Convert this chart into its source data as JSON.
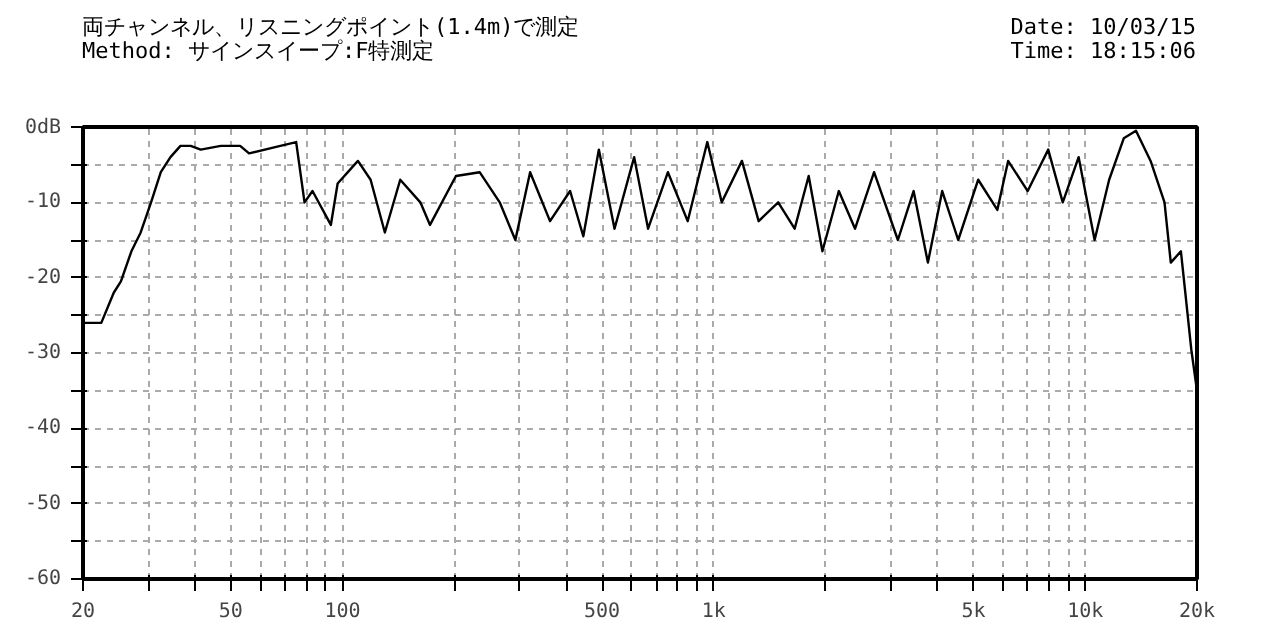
{
  "chart_data": {
    "type": "line",
    "subtitle": "両チャンネル、リスニングポイント(1.4m)で測定",
    "annotations": [
      "Method: サインスイープ:F特測定",
      "Date: 10/03/15",
      "Time: 18:15:06"
    ],
    "x": [
      20,
      22.4,
      24.2,
      25.3,
      27,
      28.6,
      30.5,
      32.4,
      34.4,
      36.6,
      39,
      41.5,
      47,
      53,
      56,
      68,
      75,
      79,
      83,
      93,
      97,
      110,
      119,
      130,
      143,
      162,
      172,
      202,
      234,
      265,
      292,
      320,
      362,
      410,
      445,
      490,
      540,
      610,
      665,
      752,
      850,
      960,
      1050,
      1190,
      1320,
      1490,
      1650,
      1800,
      1960,
      2170,
      2400,
      2700,
      3130,
      3450,
      3770,
      4120,
      4550,
      5150,
      5800,
      6200,
      7000,
      7950,
      8700,
      9600,
      10600,
      11600,
      12700,
      13700,
      15000,
      16350,
      17000,
      18100,
      18600,
      19300,
      20000
    ],
    "series": [
      {
        "color": "#000000",
        "values": [
          -26,
          -26,
          -22,
          -20.5,
          -16.5,
          -14,
          -10,
          -6,
          -4,
          -2.5,
          -2.5,
          -3,
          -2.5,
          -2.5,
          -3.5,
          -2.5,
          -2,
          -10,
          -8.5,
          -13,
          -7.5,
          -4.5,
          -7,
          -14,
          -7,
          -10,
          -13,
          -6.5,
          -6,
          -10,
          -15,
          -6,
          -12.5,
          -8.5,
          -14.5,
          -3,
          -13.5,
          -4,
          -13.5,
          -6,
          -12.5,
          -2,
          -10,
          -4.5,
          -12.5,
          -10,
          -13.5,
          -6.5,
          -16.5,
          -8.5,
          -13.5,
          -6,
          -15,
          -8.5,
          -18,
          -8.5,
          -15,
          -7,
          -11,
          -4.5,
          -8.5,
          -3,
          -10,
          -4,
          -15,
          -7,
          -1.5,
          -0.5,
          -4.5,
          -10,
          -18,
          -16.5,
          -22,
          -29.5,
          -35
        ]
      }
    ],
    "xlim": [
      20,
      20000
    ],
    "xticks": [
      20,
      {
        "value": 30,
        "label": null
      },
      {
        "value": 40,
        "label": null
      },
      50,
      {
        "value": 60,
        "label": null
      },
      {
        "value": 70,
        "label": null
      },
      {
        "value": 80,
        "label": null
      },
      {
        "value": 90,
        "label": null
      },
      100,
      {
        "value": 200,
        "label": null
      },
      {
        "value": 300,
        "label": null
      },
      {
        "value": 400,
        "label": null
      },
      500,
      {
        "value": 600,
        "label": null
      },
      {
        "value": 700,
        "label": null
      },
      {
        "value": 800,
        "label": null
      },
      {
        "value": 900,
        "label": null
      },
      {
        "value": 1000,
        "label": "1k"
      },
      {
        "value": 2000,
        "label": null
      },
      {
        "value": 3000,
        "label": null
      },
      {
        "value": 4000,
        "label": null
      },
      {
        "value": 5000,
        "label": "5k"
      },
      {
        "value": 6000,
        "label": null
      },
      {
        "value": 7000,
        "label": null
      },
      {
        "value": 8000,
        "label": null
      },
      {
        "value": 9000,
        "label": null
      },
      {
        "value": 10000,
        "label": "10k"
      },
      {
        "value": 20000,
        "label": "20k"
      }
    ],
    "ylim": [
      -60,
      0
    ],
    "yticks": [
      {
        "value": 0,
        "label": "0dB"
      },
      {
        "value": -5,
        "label": null
      },
      -10,
      {
        "value": -15,
        "label": null
      },
      -20,
      {
        "value": -25,
        "label": null
      },
      -30,
      {
        "value": -35,
        "label": null
      },
      -40,
      {
        "value": -45,
        "label": null
      },
      -50,
      {
        "value": -55,
        "label": null
      },
      -60
    ],
    "log": "x",
    "grid": true,
    "marker": "none",
    "line_style": "solid"
  }
}
